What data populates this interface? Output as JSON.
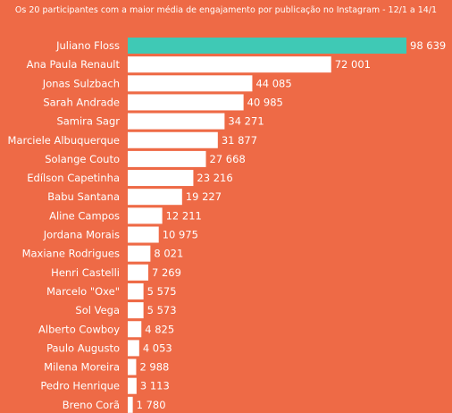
{
  "colors": {
    "background": "#ee6a46",
    "bar": "#ffffff",
    "highlight_bar": "#3fc9b5",
    "text": "#ffffff"
  },
  "subtitle": "Os 20 participantes com a maior média de engajamento por publicação no Instagram - 12/1 a 14/1",
  "chart_data": {
    "type": "bar",
    "orientation": "horizontal",
    "title": "",
    "subtitle": "Os 20 participantes com a maior média de engajamento por publicação no Instagram - 12/1 a 14/1",
    "xlabel": "",
    "ylabel": "",
    "grid": false,
    "legend": "none",
    "xlim": [
      0,
      98639
    ],
    "highlight_index": 0,
    "categories": [
      "Juliano Floss",
      "Ana Paula Renault",
      "Jonas Sulzbach",
      "Sarah Andrade",
      "Samira Sagr",
      "Marciele Albuquerque",
      "Solange Couto",
      "Edílson Capetinha",
      "Babu Santana",
      "Aline Campos",
      "Jordana Morais",
      "Maxiane Rodrigues",
      "Henri Castelli",
      "Marcelo \"Oxe\"",
      "Sol Vega",
      "Alberto Cowboy",
      "Paulo Augusto",
      "Milena Moreira",
      "Pedro Henrique",
      "Breno Corã"
    ],
    "values": [
      98639,
      72001,
      44085,
      40985,
      34271,
      31877,
      27668,
      23216,
      19227,
      12211,
      10975,
      8021,
      7269,
      5575,
      5573,
      4825,
      4053,
      2988,
      3113,
      1780
    ],
    "value_labels": [
      "98 639",
      "72 001",
      "44 085",
      "40 985",
      "34 271",
      "31 877",
      "27 668",
      "23 216",
      "19 227",
      "12 211",
      "10 975",
      "8 021",
      "7 269",
      "5 575",
      "5 573",
      "4 825",
      "4 053",
      "2 988",
      "3 113",
      "1 780"
    ]
  }
}
